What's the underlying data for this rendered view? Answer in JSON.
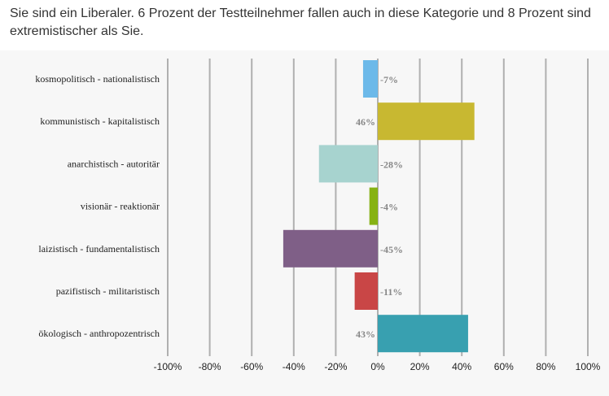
{
  "header": {
    "text": "Sie sind ein Liberaler. 6 Prozent der Testteilnehmer fallen auch in diese Kategorie und 8 Prozent sind extremistischer als Sie."
  },
  "chart_data": {
    "type": "bar",
    "orientation": "horizontal",
    "categories": [
      "kosmopolitisch - nationalistisch",
      "kommunistisch - kapitalistisch",
      "anarchistisch - autoritär",
      "visionär - reaktionär",
      "laizistisch - fundamentalistisch",
      "pazifistisch - militaristisch",
      "ökologisch - anthropozentrisch"
    ],
    "values": [
      -7,
      46,
      -28,
      -4,
      -45,
      -11,
      43
    ],
    "value_labels": [
      "-7%",
      "46%",
      "-28%",
      "-4%",
      "-45%",
      "-11%",
      "43%"
    ],
    "colors": [
      "#6cb9e9",
      "#c8b831",
      "#a7d3cf",
      "#86b214",
      "#7f5f87",
      "#c94646",
      "#38a0b0"
    ],
    "xlim": [
      -100,
      100
    ],
    "xticks": [
      -100,
      -80,
      -60,
      -40,
      -20,
      0,
      20,
      40,
      60,
      80,
      100
    ],
    "xtick_labels": [
      "-100%",
      "-80%",
      "-60%",
      "-40%",
      "-20%",
      "0%",
      "20%",
      "40%",
      "60%",
      "80%",
      "100%"
    ],
    "grid": true,
    "gridline_color": "#b0b0b0"
  }
}
